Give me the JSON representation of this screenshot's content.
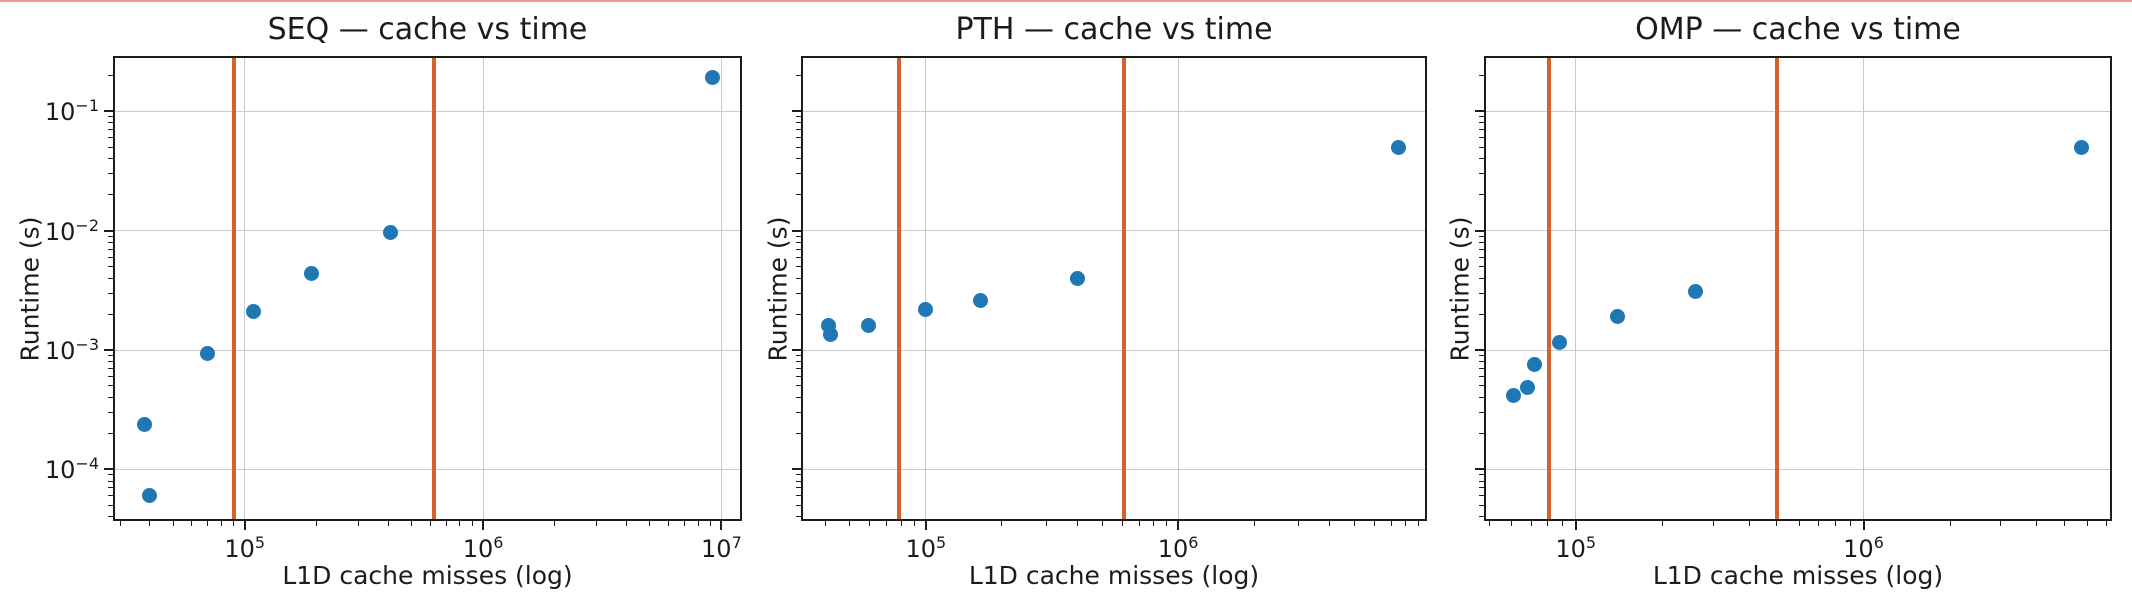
{
  "figure": {
    "background_color": "#ffffff",
    "top_strip_color": "#f59c92",
    "marker_color": "#1f77b4",
    "vline_color": "#d2622d",
    "grid_color": "#cbcbcb",
    "spine_color": "#1c1c1c"
  },
  "chart_data": [
    {
      "type": "scatter",
      "title": "SEQ — cache vs time",
      "xlabel": "L1D cache misses (log)",
      "ylabel": "Runtime (s)",
      "xscale": "log",
      "yscale": "log",
      "grid": true,
      "legend": false,
      "xlim": [
        28000,
        12200000
      ],
      "ylim": [
        3.7e-05,
        0.29
      ],
      "x_ticks": [
        100000,
        1000000,
        10000000
      ],
      "x_tick_exps": [
        "5",
        "6",
        "7"
      ],
      "y_ticks": [
        0.1,
        0.01,
        0.001,
        0.0001
      ],
      "y_tick_exps": [
        "−1",
        "−2",
        "−3",
        "−4"
      ],
      "show_y_tick_labels": true,
      "vlines": [
        90000,
        620000
      ],
      "points": [
        [
          38000,
          0.00024
        ],
        [
          40000,
          6e-05
        ],
        [
          70000,
          0.00094
        ],
        [
          109000,
          0.0021
        ],
        [
          190000,
          0.0044
        ],
        [
          410000,
          0.0096
        ],
        [
          9200000,
          0.19
        ]
      ]
    },
    {
      "type": "scatter",
      "title": "PTH — cache vs time",
      "xlabel": "L1D cache misses (log)",
      "ylabel": "Runtime (s)",
      "xscale": "log",
      "yscale": "log",
      "grid": true,
      "legend": false,
      "xlim": [
        32000,
        9700000
      ],
      "ylim": [
        3.7e-05,
        0.29
      ],
      "x_ticks": [
        100000,
        1000000
      ],
      "x_tick_exps": [
        "5",
        "6"
      ],
      "y_ticks": [
        0.1,
        0.01,
        0.001,
        0.0001
      ],
      "y_tick_exps": [
        "−1",
        "−2",
        "−3",
        "−4"
      ],
      "show_y_tick_labels": false,
      "vlines": [
        78000,
        610000
      ],
      "points": [
        [
          41000,
          0.0016
        ],
        [
          42000,
          0.00134
        ],
        [
          59000,
          0.0016
        ],
        [
          100000,
          0.0022
        ],
        [
          164000,
          0.0026
        ],
        [
          400000,
          0.004
        ],
        [
          7500000,
          0.05
        ]
      ]
    },
    {
      "type": "scatter",
      "title": "OMP — cache vs time",
      "xlabel": "L1D cache misses (log)",
      "ylabel": "Runtime (s)",
      "xscale": "log",
      "yscale": "log",
      "grid": true,
      "legend": false,
      "xlim": [
        48000,
        7300000
      ],
      "ylim": [
        3.7e-05,
        0.29
      ],
      "x_ticks": [
        100000,
        1000000
      ],
      "x_tick_exps": [
        "5",
        "6"
      ],
      "y_ticks": [
        0.1,
        0.01,
        0.001,
        0.0001
      ],
      "y_tick_exps": [
        "−1",
        "−2",
        "−3",
        "−4"
      ],
      "show_y_tick_labels": false,
      "vlines": [
        81000,
        500000
      ],
      "points": [
        [
          61000,
          0.00042
        ],
        [
          68000,
          0.00049
        ],
        [
          72000,
          0.00076
        ],
        [
          88000,
          0.00115
        ],
        [
          140000,
          0.0019
        ],
        [
          260000,
          0.0031
        ],
        [
          5700000,
          0.05
        ]
      ]
    }
  ]
}
